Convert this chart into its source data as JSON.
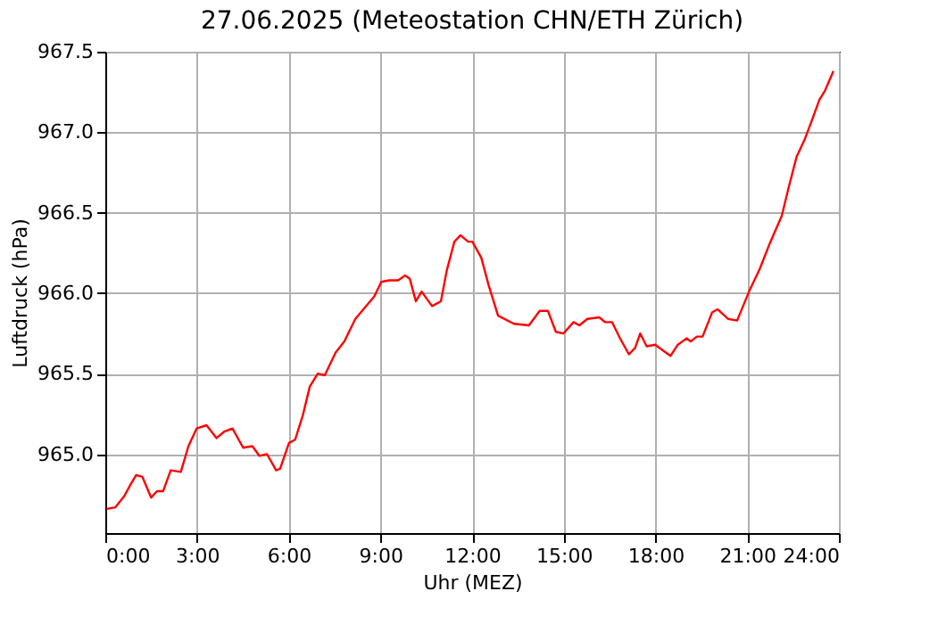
{
  "chart_data": {
    "type": "line",
    "title": "27.06.2025  (Meteostation CHN/ETH Zürich)",
    "xlabel": "Uhr (MEZ)",
    "ylabel": "Luftdruck (hPa)",
    "x": [
      0.04,
      0.33,
      0.62,
      0.82,
      1.01,
      1.21,
      1.5,
      1.69,
      1.89,
      2.14,
      2.47,
      2.72,
      2.99,
      3.31,
      3.64,
      3.89,
      4.16,
      4.51,
      4.81,
      5.04,
      5.29,
      5.59,
      5.72,
      6.01,
      6.21,
      6.46,
      6.69,
      6.95,
      7.18,
      7.53,
      7.82,
      8.18,
      8.8,
      9.03,
      9.28,
      9.58,
      9.81,
      9.96,
      10.16,
      10.35,
      10.69,
      10.98,
      11.17,
      11.42,
      11.62,
      11.87,
      12.01,
      12.3,
      12.54,
      12.85,
      13.37,
      13.86,
      14.21,
      14.48,
      14.74,
      14.99,
      15.32,
      15.51,
      15.77,
      16.16,
      16.35,
      16.58,
      16.84,
      17.13,
      17.33,
      17.5,
      17.71,
      17.99,
      18.49,
      18.73,
      19.02,
      19.15,
      19.35,
      19.54,
      19.85,
      20.03,
      20.38,
      20.67,
      21.06,
      21.41,
      21.74,
      22.13,
      22.36,
      22.62,
      22.87,
      23.11,
      23.36,
      23.55,
      23.82
    ],
    "series": [
      {
        "color": "#ff0000",
        "values": [
          964.66,
          964.67,
          964.74,
          964.81,
          964.87,
          964.86,
          964.73,
          964.77,
          964.77,
          964.9,
          964.89,
          965.05,
          965.16,
          965.18,
          965.1,
          965.14,
          965.16,
          965.04,
          965.05,
          964.99,
          965.0,
          964.9,
          964.91,
          965.07,
          965.09,
          965.24,
          965.42,
          965.5,
          965.49,
          965.63,
          965.7,
          965.84,
          965.98,
          966.07,
          966.08,
          966.08,
          966.11,
          966.09,
          965.95,
          966.01,
          965.92,
          965.95,
          966.14,
          966.32,
          966.36,
          966.32,
          966.32,
          966.22,
          966.05,
          965.86,
          965.81,
          965.8,
          965.89,
          965.89,
          965.76,
          965.75,
          965.82,
          965.8,
          965.84,
          965.85,
          965.82,
          965.82,
          965.72,
          965.62,
          965.66,
          965.75,
          965.67,
          965.68,
          965.61,
          965.68,
          965.72,
          965.7,
          965.73,
          965.73,
          965.88,
          965.9,
          965.84,
          965.83,
          966.01,
          966.15,
          966.31,
          966.48,
          966.66,
          966.85,
          966.95,
          967.07,
          967.2,
          967.26,
          967.38
        ]
      }
    ],
    "xlim": [
      0,
      24
    ],
    "ylim": [
      964.51,
      967.5
    ],
    "xticks": [
      {
        "value": 0,
        "label": "0:00"
      },
      {
        "value": 3,
        "label": "3:00"
      },
      {
        "value": 6,
        "label": "6:00"
      },
      {
        "value": 9,
        "label": "9:00"
      },
      {
        "value": 12,
        "label": "12:00"
      },
      {
        "value": 15,
        "label": "15:00"
      },
      {
        "value": 18,
        "label": "18:00"
      },
      {
        "value": 21,
        "label": "21:00"
      },
      {
        "value": 24,
        "label": "24:00"
      }
    ],
    "yticks": [
      {
        "value": 965,
        "label": "965.0"
      },
      {
        "value": 965.5,
        "label": "965.5"
      },
      {
        "value": 966,
        "label": "966.0"
      },
      {
        "value": 966.5,
        "label": "966.5"
      },
      {
        "value": 967,
        "label": "967.0"
      },
      {
        "value": 967.5,
        "label": "967.5"
      }
    ],
    "grid": true,
    "marker": "none",
    "line_style": "solid"
  }
}
